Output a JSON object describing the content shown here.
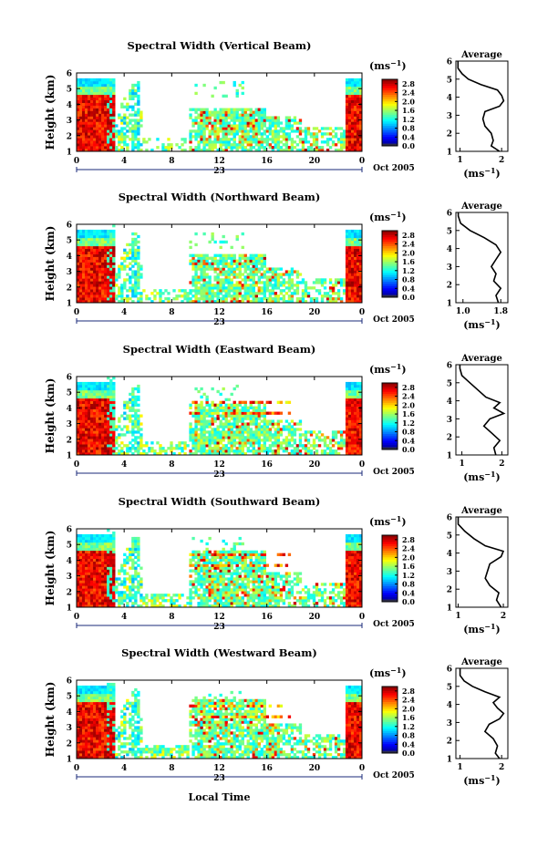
{
  "figure": {
    "xlabel": "Local Time",
    "date_label": "Oct 2005",
    "day_label": "23",
    "colorbar_unit": "(ms",
    "colorbar_unit_exp": "−1",
    "colorbar_unit_close": ")",
    "avg_title": "Average",
    "avg_unit": "(ms",
    "avg_unit_exp": "−1",
    "avg_unit_close": ")",
    "ylabel": "Height (km)"
  },
  "chart_data": [
    {
      "type": "heatmap",
      "title": "Spectral Width (Vertical Beam)",
      "ylabel": "Height (km)",
      "x_ticks": [
        "0",
        "4",
        "8",
        "12",
        "16",
        "20",
        "0"
      ],
      "x_tick_values": [
        0,
        4,
        8,
        12,
        16,
        20,
        24
      ],
      "y_ticks": [
        "1",
        "2",
        "3",
        "4",
        "5",
        "6"
      ],
      "xlim": [
        0,
        24
      ],
      "ylim": [
        1,
        6
      ],
      "colorbar_ticks": [
        "2.8",
        "2.4",
        "2.0",
        "1.6",
        "1.2",
        "0.8",
        "0.4",
        "0.0"
      ],
      "colorbar_range": [
        0,
        3.0
      ],
      "profile": {
        "title": "Average",
        "x_ticks": [
          "1",
          "2"
        ],
        "x_tick_values": [
          1,
          2
        ],
        "xlim": [
          0.9,
          2.15
        ],
        "y_ticks": [
          "1",
          "2",
          "3",
          "4",
          "5",
          "6"
        ],
        "heights": [
          1.0,
          1.3,
          1.6,
          2.0,
          2.4,
          2.8,
          3.2,
          3.5,
          3.8,
          4.1,
          4.4,
          4.7,
          5.0,
          5.3,
          5.6,
          6.0
        ],
        "values": [
          1.95,
          1.75,
          1.8,
          1.75,
          1.6,
          1.55,
          1.6,
          1.95,
          2.05,
          2.0,
          1.9,
          1.5,
          1.2,
          1.05,
          0.95,
          0.95
        ]
      }
    },
    {
      "type": "heatmap",
      "title": "Spectral Width (Northward Beam)",
      "ylabel": "Height (km)",
      "x_ticks": [
        "0",
        "4",
        "8",
        "12",
        "16",
        "20",
        "0"
      ],
      "x_tick_values": [
        0,
        4,
        8,
        12,
        16,
        20,
        24
      ],
      "y_ticks": [
        "1",
        "2",
        "3",
        "4",
        "5",
        "6"
      ],
      "xlim": [
        0,
        24
      ],
      "ylim": [
        1,
        6
      ],
      "colorbar_ticks": [
        "2.8",
        "2.4",
        "2.0",
        "1.6",
        "1.2",
        "0.8",
        "0.4",
        "0.0"
      ],
      "colorbar_range": [
        0,
        3.0
      ],
      "profile": {
        "title": "Average",
        "x_ticks": [
          "1.0",
          "1.8"
        ],
        "x_tick_values": [
          1.0,
          1.8
        ],
        "xlim": [
          0.85,
          1.95
        ],
        "y_ticks": [
          "1",
          "2",
          "3",
          "4",
          "5",
          "6"
        ],
        "heights": [
          1.0,
          1.4,
          1.8,
          2.2,
          2.6,
          3.0,
          3.4,
          3.8,
          4.2,
          4.6,
          5.0,
          5.4,
          5.8,
          6.0
        ],
        "values": [
          1.75,
          1.7,
          1.8,
          1.65,
          1.7,
          1.6,
          1.7,
          1.8,
          1.7,
          1.45,
          1.15,
          0.95,
          0.9,
          0.9
        ]
      }
    },
    {
      "type": "heatmap",
      "title": "Spectral Width (Eastward Beam)",
      "ylabel": "Height (km)",
      "x_ticks": [
        "0",
        "4",
        "8",
        "12",
        "16",
        "20",
        "0"
      ],
      "x_tick_values": [
        0,
        4,
        8,
        12,
        16,
        20,
        24
      ],
      "y_ticks": [
        "1",
        "2",
        "3",
        "4",
        "5",
        "6"
      ],
      "xlim": [
        0,
        24
      ],
      "ylim": [
        1,
        6
      ],
      "colorbar_ticks": [
        "2.8",
        "2.4",
        "2.0",
        "1.6",
        "1.2",
        "0.8",
        "0.4",
        "0.0"
      ],
      "colorbar_range": [
        0,
        3.0
      ],
      "profile": {
        "title": "Average",
        "x_ticks": [
          "1",
          "2"
        ],
        "x_tick_values": [
          1,
          2
        ],
        "xlim": [
          0.85,
          2.15
        ],
        "y_ticks": [
          "1",
          "2",
          "3",
          "4",
          "5",
          "6"
        ],
        "heights": [
          1.0,
          1.4,
          1.8,
          2.2,
          2.6,
          3.0,
          3.3,
          3.6,
          3.9,
          4.2,
          4.6,
          5.0,
          5.4,
          5.8,
          6.0
        ],
        "values": [
          1.85,
          1.8,
          1.95,
          1.75,
          1.55,
          1.7,
          2.05,
          1.8,
          1.95,
          1.6,
          1.4,
          1.2,
          1.0,
          0.95,
          0.95
        ]
      }
    },
    {
      "type": "heatmap",
      "title": "Spectral Width (Southward Beam)",
      "ylabel": "Height (km)",
      "x_ticks": [
        "0",
        "4",
        "8",
        "12",
        "16",
        "20",
        "0"
      ],
      "x_tick_values": [
        0,
        4,
        8,
        12,
        16,
        20,
        24
      ],
      "y_ticks": [
        "1",
        "2",
        "3",
        "4",
        "5",
        "6"
      ],
      "xlim": [
        0,
        24
      ],
      "ylim": [
        1,
        6
      ],
      "colorbar_ticks": [
        "2.8",
        "2.4",
        "2.0",
        "1.6",
        "1.2",
        "0.8",
        "0.4",
        "0.0"
      ],
      "colorbar_range": [
        0,
        3.0
      ],
      "profile": {
        "title": "Average",
        "x_ticks": [
          "1",
          "2"
        ],
        "x_tick_values": [
          1,
          2
        ],
        "xlim": [
          0.95,
          2.1
        ],
        "y_ticks": [
          "1",
          "2",
          "3",
          "4",
          "5",
          "6"
        ],
        "heights": [
          1.0,
          1.4,
          1.8,
          2.2,
          2.6,
          3.0,
          3.4,
          3.8,
          4.1,
          4.4,
          4.8,
          5.2,
          5.6,
          6.0
        ],
        "values": [
          1.95,
          1.85,
          1.9,
          1.7,
          1.6,
          1.65,
          1.7,
          1.95,
          2.0,
          1.6,
          1.35,
          1.15,
          1.0,
          1.0
        ]
      }
    },
    {
      "type": "heatmap",
      "title": "Spectral Width (Westward Beam)",
      "ylabel": "Height (km)",
      "x_ticks": [
        "0",
        "4",
        "8",
        "12",
        "16",
        "20",
        "0"
      ],
      "x_tick_values": [
        0,
        4,
        8,
        12,
        16,
        20,
        24
      ],
      "y_ticks": [
        "1",
        "2",
        "3",
        "4",
        "5",
        "6"
      ],
      "xlim": [
        0,
        24
      ],
      "ylim": [
        1,
        6
      ],
      "colorbar_ticks": [
        "2.8",
        "2.4",
        "2.0",
        "1.6",
        "1.2",
        "0.8",
        "0.4",
        "0.0"
      ],
      "colorbar_range": [
        0,
        3.0
      ],
      "profile": {
        "title": "Average",
        "x_ticks": [
          "1",
          "2"
        ],
        "x_tick_values": [
          1,
          2
        ],
        "xlim": [
          0.9,
          2.15
        ],
        "y_ticks": [
          "1",
          "2",
          "3",
          "4",
          "5",
          "6"
        ],
        "heights": [
          1.0,
          1.3,
          1.7,
          2.1,
          2.5,
          2.9,
          3.2,
          3.5,
          3.8,
          4.1,
          4.4,
          4.7,
          5.0,
          5.3,
          5.6,
          6.0
        ],
        "values": [
          1.95,
          1.85,
          1.9,
          1.8,
          1.6,
          1.7,
          1.95,
          2.05,
          1.9,
          1.8,
          1.95,
          1.6,
          1.3,
          1.1,
          1.0,
          1.0
        ]
      }
    }
  ]
}
